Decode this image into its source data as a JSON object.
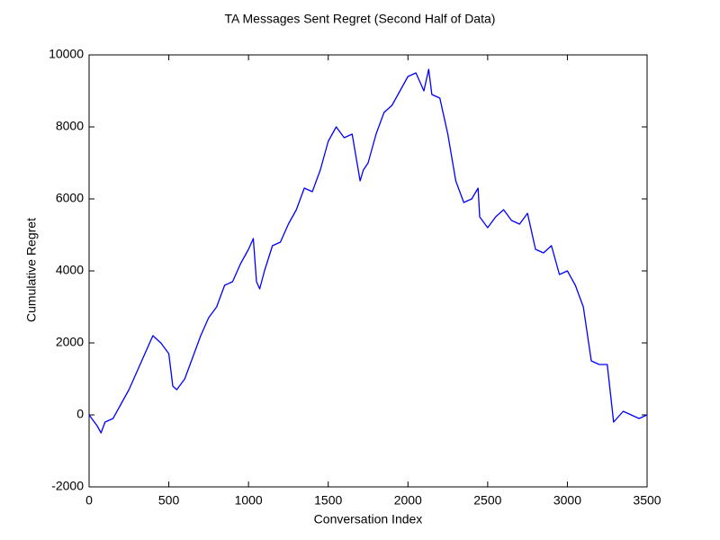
{
  "chart_data": {
    "type": "line",
    "title": "TA Messages Sent Regret (Second Half of Data)",
    "x_label": "Conversation Index",
    "y_label": "Cumulative Regret",
    "xlim": [
      0,
      3500
    ],
    "xticks": [
      0,
      500,
      1000,
      1500,
      2000,
      2500,
      3000,
      3500
    ],
    "ylim": [
      -2000,
      10000
    ],
    "yticks": [
      -2000,
      0,
      2000,
      4000,
      6000,
      8000,
      10000
    ],
    "series": [
      {
        "color": "#0000ff",
        "x": [
          0,
          50,
          75,
          100,
          150,
          200,
          250,
          300,
          350,
          400,
          450,
          500,
          525,
          550,
          600,
          650,
          700,
          750,
          800,
          850,
          900,
          950,
          1000,
          1030,
          1050,
          1070,
          1100,
          1150,
          1200,
          1250,
          1300,
          1350,
          1400,
          1450,
          1500,
          1550,
          1600,
          1650,
          1700,
          1720,
          1750,
          1800,
          1850,
          1900,
          1950,
          2000,
          2050,
          2100,
          2130,
          2150,
          2200,
          2250,
          2300,
          2350,
          2400,
          2440,
          2450,
          2500,
          2550,
          2600,
          2650,
          2700,
          2750,
          2800,
          2850,
          2900,
          2950,
          3000,
          3050,
          3100,
          3150,
          3200,
          3250,
          3290,
          3350,
          3400,
          3450,
          3500
        ],
        "values": [
          0,
          -300,
          -500,
          -200,
          -100,
          300,
          700,
          1200,
          1700,
          2200,
          2000,
          1700,
          800,
          700,
          1000,
          1600,
          2200,
          2700,
          3000,
          3600,
          3700,
          4200,
          4600,
          4900,
          3700,
          3500,
          4000,
          4700,
          4800,
          5300,
          5700,
          6300,
          6200,
          6800,
          7600,
          8000,
          7700,
          7800,
          6500,
          6800,
          7000,
          7800,
          8400,
          8600,
          9000,
          9400,
          9500,
          9000,
          9600,
          8900,
          8800,
          7800,
          6500,
          5900,
          6000,
          6300,
          5500,
          5200,
          5500,
          5700,
          5400,
          5300,
          5600,
          4600,
          4500,
          4700,
          3900,
          4000,
          3600,
          3000,
          1500,
          1400,
          1400,
          -200,
          100,
          0,
          -100,
          0
        ]
      }
    ]
  }
}
